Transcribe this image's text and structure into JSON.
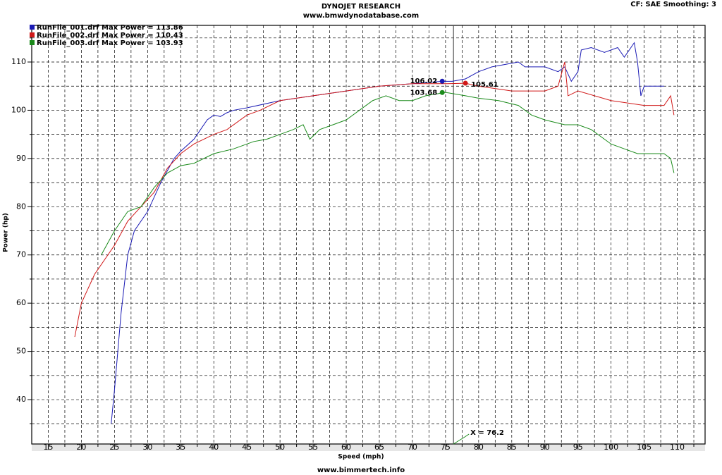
{
  "chart_data": {
    "type": "line",
    "title": "DYNOJET RESEARCH",
    "subtitle": "www.bmwdynodatabase.com",
    "corner_note": "CF: SAE  Smoothing: 3",
    "footer": "www.bimmertech.info",
    "x_label": "Speed (mph)",
    "y_label": "Power (hp)",
    "xlim": [
      12.5,
      114.2
    ],
    "ylim": [
      30.8,
      117.6
    ],
    "xticks": [
      15,
      20,
      25,
      30,
      35,
      40,
      45,
      50,
      55,
      60,
      65,
      70,
      75,
      80,
      85,
      90,
      95,
      100,
      105,
      110
    ],
    "minor_xticks": [
      17.5,
      22.5,
      27.5,
      32.5,
      37.5,
      42.5,
      47.5,
      52.5,
      57.5,
      62.5,
      67.5,
      72.5,
      77.5,
      82.5,
      87.5,
      92.5,
      97.5,
      102.5,
      107.5,
      112.5
    ],
    "yticks": [
      40,
      50,
      60,
      70,
      80,
      90,
      100,
      110
    ],
    "minor_yticks": [
      35,
      45,
      55,
      65,
      75,
      85,
      95,
      105,
      115
    ],
    "grid": true,
    "series": [
      {
        "name": "RunFile_001.drf Max Power = 113.86",
        "color": "#1a1ab4",
        "x": [
          24.5,
          25,
          26,
          27,
          28,
          30,
          32,
          34,
          35,
          37,
          39,
          40,
          41,
          42,
          43,
          45,
          50,
          55,
          60,
          65,
          70,
          74.5,
          76,
          78,
          80,
          82,
          86,
          87,
          90,
          92,
          93,
          94,
          95,
          95.5,
          97,
          99,
          101,
          102,
          103,
          103.5,
          104,
          104.5,
          105,
          107,
          108
        ],
        "values": [
          35,
          42,
          58,
          70,
          75,
          79,
          85,
          90,
          91.5,
          94,
          98,
          99,
          98.7,
          99.5,
          100,
          100.5,
          102,
          103,
          104,
          105,
          105.5,
          106,
          106,
          106.5,
          108,
          109,
          110,
          109,
          109,
          108,
          109,
          106,
          108,
          112.5,
          113,
          112,
          113,
          111,
          113,
          114,
          110,
          103,
          105,
          105,
          105
        ]
      },
      {
        "name": "RunFile_002.drf Max Power = 110.43",
        "color": "#d01818",
        "x": [
          19,
          20,
          22,
          24,
          25,
          27,
          29,
          31,
          33,
          35,
          37,
          40,
          42,
          45,
          47,
          50,
          55,
          60,
          65,
          70,
          75,
          78,
          80,
          85,
          90,
          92,
          93,
          93.5,
          95,
          100,
          105,
          108,
          109,
          109.5
        ],
        "values": [
          53,
          60,
          66,
          70,
          72,
          77,
          80,
          83,
          88,
          91,
          93,
          95,
          96,
          99,
          100,
          102,
          103,
          104,
          105,
          105.5,
          105.5,
          105.6,
          105,
          104,
          104,
          105,
          110,
          103,
          104,
          102,
          101,
          101,
          103,
          99
        ]
      },
      {
        "name": "RunFile_003.drf Max Power = 103.93",
        "color": "#1a8a1a",
        "x": [
          23,
          25,
          27,
          29,
          31,
          33,
          35,
          37,
          40,
          43,
          46,
          48,
          50,
          52,
          53.5,
          54.5,
          56,
          58,
          60,
          62,
          64,
          66,
          68,
          70,
          72,
          75,
          78,
          80,
          83,
          86,
          88,
          90,
          93,
          95,
          97,
          99,
          100,
          102,
          104,
          106,
          108,
          109,
          109.5
        ],
        "values": [
          70,
          75,
          79,
          80,
          84,
          87,
          88.5,
          89,
          91,
          92,
          93.5,
          94,
          95,
          96,
          97,
          94,
          96,
          97,
          98,
          100,
          102,
          103,
          102,
          102,
          103,
          103.7,
          103,
          102.5,
          102,
          101,
          99,
          98,
          97,
          97,
          96,
          94,
          93,
          92,
          91,
          91,
          91,
          90,
          87
        ]
      }
    ],
    "markers": [
      {
        "x": 74.5,
        "y": 106.02,
        "color": "#1a1ab4"
      },
      {
        "x": 78,
        "y": 105.61,
        "color": "#d01818"
      },
      {
        "x": 74.5,
        "y": 103.68,
        "color": "#1a8a1a"
      }
    ],
    "cursor": {
      "value": 76.2,
      "label": "X = 76.2"
    }
  }
}
